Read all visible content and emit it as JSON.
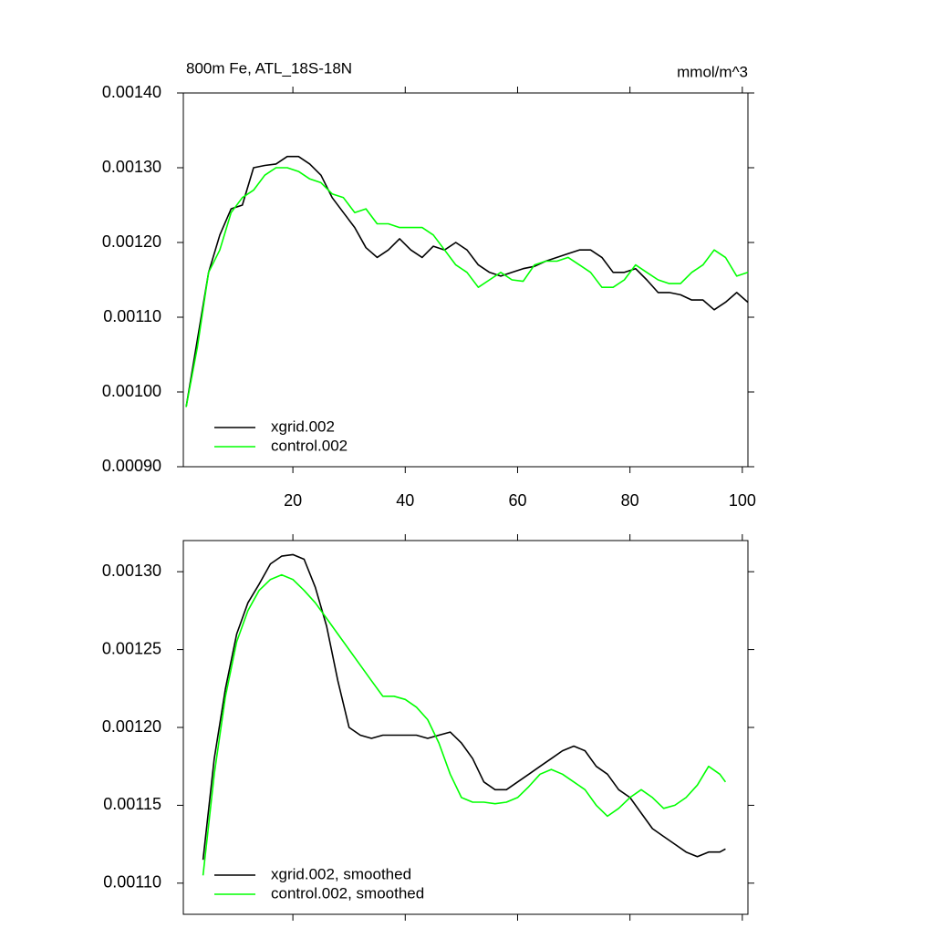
{
  "chart_data": [
    {
      "type": "line",
      "title": "800m Fe, ATL_18S-18N",
      "units_label": "mmol/m^3",
      "x": [
        1,
        3,
        5,
        7,
        9,
        11,
        13,
        15,
        17,
        19,
        21,
        23,
        25,
        27,
        29,
        31,
        33,
        35,
        37,
        39,
        41,
        43,
        45,
        47,
        49,
        51,
        53,
        55,
        57,
        59,
        61,
        63,
        65,
        67,
        69,
        71,
        73,
        75,
        77,
        79,
        81,
        83,
        85,
        87,
        89,
        91,
        93,
        95,
        97,
        99,
        101
      ],
      "series": [
        {
          "name": "xgrid.002",
          "color": "#000000",
          "values": [
            0.00098,
            0.00107,
            0.00116,
            0.00121,
            0.001245,
            0.00125,
            0.0013,
            0.001303,
            0.001305,
            0.001315,
            0.001315,
            0.001305,
            0.00129,
            0.00126,
            0.00124,
            0.00122,
            0.001193,
            0.00118,
            0.00119,
            0.001205,
            0.00119,
            0.00118,
            0.001195,
            0.00119,
            0.0012,
            0.00119,
            0.00117,
            0.00116,
            0.001155,
            0.00116,
            0.001165,
            0.001168,
            0.001175,
            0.00118,
            0.001185,
            0.00119,
            0.00119,
            0.00118,
            0.00116,
            0.00116,
            0.001165,
            0.00115,
            0.001133,
            0.001133,
            0.00113,
            0.001123,
            0.001123,
            0.00111,
            0.00112,
            0.001133,
            0.00112
          ]
        },
        {
          "name": "control.002",
          "color": "#00ff00",
          "values": [
            0.00098,
            0.00106,
            0.00116,
            0.00119,
            0.00124,
            0.00126,
            0.00127,
            0.00129,
            0.0013,
            0.0013,
            0.001295,
            0.001285,
            0.00128,
            0.001265,
            0.00126,
            0.00124,
            0.001245,
            0.001225,
            0.001225,
            0.00122,
            0.00122,
            0.00122,
            0.00121,
            0.00119,
            0.00117,
            0.00116,
            0.00114,
            0.00115,
            0.00116,
            0.00115,
            0.001148,
            0.00117,
            0.001175,
            0.001175,
            0.00118,
            0.00117,
            0.00116,
            0.00114,
            0.00114,
            0.00115,
            0.00117,
            0.00116,
            0.00115,
            0.001145,
            0.001145,
            0.00116,
            0.00117,
            0.00119,
            0.00118,
            0.001155,
            0.00116
          ]
        }
      ],
      "xlim": [
        0.5,
        101
      ],
      "xticks": [
        20,
        40,
        60,
        80,
        100
      ],
      "show_xtick_labels": true,
      "ylim": [
        0.0009,
        0.0014
      ],
      "yticks": [
        {
          "value": 0.0009,
          "label": "0.00090"
        },
        {
          "value": 0.001,
          "label": "0.00100"
        },
        {
          "value": 0.0011,
          "label": "0.00110"
        },
        {
          "value": 0.0012,
          "label": "0.00120"
        },
        {
          "value": 0.0013,
          "label": "0.00130"
        },
        {
          "value": 0.0014,
          "label": "0.00140"
        }
      ],
      "legend": "lower-left"
    },
    {
      "type": "line",
      "x": [
        4,
        6,
        8,
        10,
        12,
        14,
        16,
        18,
        20,
        22,
        24,
        26,
        28,
        30,
        32,
        34,
        36,
        38,
        40,
        42,
        44,
        46,
        48,
        50,
        52,
        54,
        56,
        58,
        60,
        62,
        64,
        66,
        68,
        70,
        72,
        74,
        76,
        78,
        80,
        82,
        84,
        86,
        88,
        90,
        92,
        94,
        96,
        97
      ],
      "series": [
        {
          "name": "xgrid.002, smoothed",
          "color": "#000000",
          "values": [
            0.001115,
            0.00118,
            0.001225,
            0.00126,
            0.00128,
            0.001292,
            0.001305,
            0.00131,
            0.001311,
            0.001308,
            0.00129,
            0.001265,
            0.00123,
            0.0012,
            0.001195,
            0.001193,
            0.001195,
            0.001195,
            0.001195,
            0.001195,
            0.001193,
            0.001195,
            0.001197,
            0.00119,
            0.00118,
            0.001165,
            0.00116,
            0.00116,
            0.001165,
            0.00117,
            0.001175,
            0.00118,
            0.001185,
            0.001188,
            0.001185,
            0.001175,
            0.00117,
            0.00116,
            0.001155,
            0.001145,
            0.001135,
            0.00113,
            0.001125,
            0.00112,
            0.001117,
            0.00112,
            0.00112,
            0.001122
          ]
        },
        {
          "name": "control.002, smoothed",
          "color": "#00ff00",
          "values": [
            0.001105,
            0.00117,
            0.00122,
            0.001255,
            0.001275,
            0.001288,
            0.001295,
            0.001298,
            0.001295,
            0.001288,
            0.00128,
            0.00127,
            0.00126,
            0.00125,
            0.00124,
            0.00123,
            0.00122,
            0.00122,
            0.001218,
            0.001213,
            0.001205,
            0.00119,
            0.00117,
            0.001155,
            0.001152,
            0.001152,
            0.001151,
            0.001152,
            0.001155,
            0.001162,
            0.00117,
            0.001173,
            0.00117,
            0.001165,
            0.00116,
            0.00115,
            0.001143,
            0.001148,
            0.001155,
            0.00116,
            0.001155,
            0.001148,
            0.00115,
            0.001155,
            0.001163,
            0.001175,
            0.00117,
            0.001165
          ]
        }
      ],
      "xlim": [
        0.5,
        101
      ],
      "xticks": [
        20,
        40,
        60,
        80,
        100
      ],
      "show_xtick_labels": false,
      "ylim": [
        0.00108,
        0.00132
      ],
      "yticks": [
        {
          "value": 0.0011,
          "label": "0.00110"
        },
        {
          "value": 0.00115,
          "label": "0.00115"
        },
        {
          "value": 0.0012,
          "label": "0.00120"
        },
        {
          "value": 0.00125,
          "label": "0.00125"
        },
        {
          "value": 0.0013,
          "label": "0.00130"
        }
      ],
      "legend": "lower-left"
    }
  ]
}
